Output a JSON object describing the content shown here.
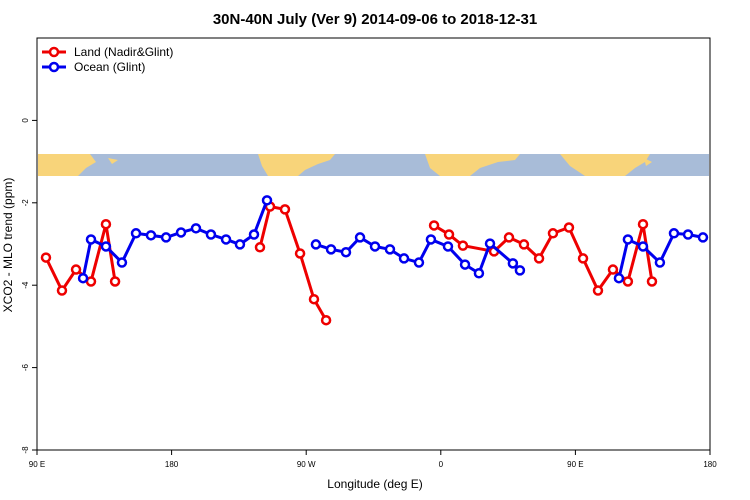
{
  "chart_data": {
    "type": "line",
    "title": "30N-40N July (Ver 9)   2014-09-06 to 2018-12-31",
    "xlabel": "Longitude (deg E)",
    "ylabel": "XCO2 - MLO trend (ppm)",
    "xlim": [
      90,
      540
    ],
    "xticks": [
      {
        "value": 90,
        "label": "90 E"
      },
      180,
      {
        "value": 270,
        "label": "90 W"
      },
      {
        "value": 360,
        "label": "0"
      },
      {
        "value": 450,
        "label": "90 E"
      },
      {
        "value": 540,
        "label": "180"
      }
    ],
    "ylim": [
      -8,
      2
    ],
    "yticks": [
      0,
      -2,
      -4,
      -6,
      -8
    ],
    "legend": "top-left",
    "series": [
      {
        "name": "Land (Nadir&Glint)",
        "color": "#ee0000",
        "x": [
          96.0,
          106.7,
          116.1,
          126.1,
          136.1,
          142.2,
          null,
          239.1,
          245.8,
          255.8,
          265.9,
          275.2,
          283.3,
          null,
          355.5,
          365.5,
          374.8,
          395.6,
          405.6,
          415.6,
          425.7,
          435.0,
          445.7,
          455.1,
          465.1,
          475.1,
          485.1,
          495.2,
          501.2
        ],
        "values": [
          -3.33,
          -4.13,
          -3.62,
          -3.91,
          -2.52,
          -3.91,
          null,
          -3.08,
          -2.09,
          -2.16,
          -3.23,
          -4.34,
          -4.85,
          null,
          -2.55,
          -2.77,
          -3.04,
          -3.18,
          -2.84,
          -3.01,
          -3.35,
          -2.74,
          -2.6,
          -3.35,
          -4.13,
          -3.62,
          -3.91,
          -2.52,
          -3.91
        ]
      },
      {
        "name": "Ocean (Glint)",
        "color": "#0000ee",
        "x": [
          120.8,
          126.1,
          136.1,
          146.8,
          156.2,
          166.2,
          176.3,
          186.3,
          196.3,
          206.3,
          216.4,
          225.7,
          235.1,
          243.8,
          null,
          276.5,
          286.6,
          296.6,
          306.0,
          316.0,
          326.0,
          335.4,
          345.4,
          353.4,
          364.8,
          376.2,
          385.5,
          392.9,
          408.2,
          412.9,
          null,
          479.1,
          485.1,
          495.2,
          506.5,
          515.9,
          525.3,
          535.3
        ],
        "values": [
          -3.83,
          -2.89,
          -3.06,
          -3.45,
          -2.74,
          -2.79,
          -2.84,
          -2.72,
          -2.62,
          -2.77,
          -2.89,
          -3.01,
          -2.77,
          -1.94,
          null,
          -3.01,
          -3.13,
          -3.2,
          -2.84,
          -3.06,
          -3.13,
          -3.35,
          -3.45,
          -2.89,
          -3.06,
          -3.5,
          -3.71,
          -2.99,
          -3.47,
          -3.64,
          null,
          -3.83,
          -2.89,
          -3.06,
          -3.45,
          -2.74,
          -2.77,
          -2.84
        ]
      }
    ]
  }
}
